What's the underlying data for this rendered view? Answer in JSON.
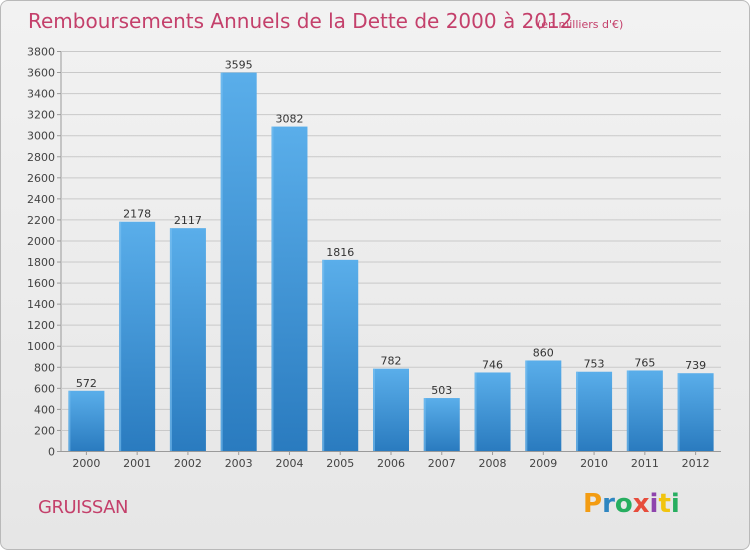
{
  "header": {
    "title": "Remboursements Annuels de la Dette de 2000 à 2012",
    "unit": "(en milliers d'€)"
  },
  "footer": {
    "commune": "GRUISSAN",
    "logo_letters": [
      "P",
      "r",
      "o",
      "x",
      "i",
      "t",
      "i"
    ],
    "logo_colors": [
      "#f39c12",
      "#2e86c1",
      "#27ae60",
      "#e74c3c",
      "#8e44ad",
      "#f1c40f",
      "#27ae60"
    ]
  },
  "chart_data": {
    "type": "bar",
    "title": "Remboursements Annuels de la Dette de 2000 à 2012",
    "xlabel": "",
    "ylabel": "",
    "categories": [
      "2000",
      "2001",
      "2002",
      "2003",
      "2004",
      "2005",
      "2006",
      "2007",
      "2008",
      "2009",
      "2010",
      "2011",
      "2012"
    ],
    "values": [
      572,
      2178,
      2117,
      3595,
      3082,
      1816,
      782,
      503,
      746,
      860,
      753,
      765,
      739
    ],
    "ylim": [
      0,
      3800
    ],
    "yticks": [
      0,
      200,
      400,
      600,
      800,
      1000,
      1200,
      1400,
      1600,
      1800,
      2000,
      2200,
      2400,
      2600,
      2800,
      3000,
      3200,
      3400,
      3600,
      3800
    ],
    "grid": true,
    "bar_color": "#4a9fdf"
  }
}
